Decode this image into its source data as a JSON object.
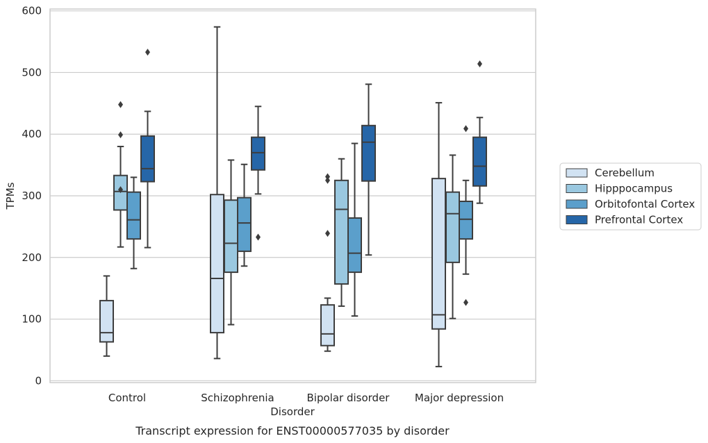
{
  "chart_data": {
    "type": "box",
    "title": "",
    "caption": "Transcript expression for ENST00000577035 by disorder",
    "xlabel": "Disorder",
    "ylabel": "TPMs",
    "ylim": [
      -3,
      603
    ],
    "yticks": [
      0,
      100,
      200,
      300,
      400,
      500,
      600
    ],
    "grid": "horizontal",
    "legend_placement": "right",
    "categories": [
      "Control",
      "Schizophrenia",
      "Bipolar disorder",
      "Major depression"
    ],
    "series": [
      {
        "name": "Cerebellum",
        "color": "#d1e2f2",
        "boxes": [
          {
            "whisker_low": 40,
            "q1": 63,
            "median": 78,
            "q3": 130,
            "whisker_high": 170,
            "outliers": []
          },
          {
            "whisker_low": 36,
            "q1": 78,
            "median": 166,
            "q3": 302,
            "whisker_high": 574,
            "outliers": []
          },
          {
            "whisker_low": 48,
            "q1": 57,
            "median": 76,
            "q3": 123,
            "whisker_high": 134,
            "outliers": [
              239,
              325,
              331
            ]
          },
          {
            "whisker_low": 23,
            "q1": 84,
            "median": 107,
            "q3": 328,
            "whisker_high": 451,
            "outliers": []
          }
        ]
      },
      {
        "name": "Hipppocampus",
        "color": "#9ac8e0",
        "boxes": [
          {
            "whisker_low": 217,
            "q1": 277,
            "median": 307,
            "q3": 333,
            "whisker_high": 380,
            "outliers": [
              310,
              399,
              448
            ]
          },
          {
            "whisker_low": 91,
            "q1": 176,
            "median": 223,
            "q3": 293,
            "whisker_high": 358,
            "outliers": []
          },
          {
            "whisker_low": 121,
            "q1": 157,
            "median": 278,
            "q3": 325,
            "whisker_high": 360,
            "outliers": []
          },
          {
            "whisker_low": 101,
            "q1": 192,
            "median": 271,
            "q3": 306,
            "whisker_high": 366,
            "outliers": []
          }
        ]
      },
      {
        "name": "Orbitofontal Cortex",
        "color": "#5b9fcb",
        "boxes": [
          {
            "whisker_low": 182,
            "q1": 230,
            "median": 261,
            "q3": 306,
            "whisker_high": 330,
            "outliers": []
          },
          {
            "whisker_low": 186,
            "q1": 210,
            "median": 256,
            "q3": 297,
            "whisker_high": 351,
            "outliers": []
          },
          {
            "whisker_low": 105,
            "q1": 176,
            "median": 207,
            "q3": 264,
            "whisker_high": 385,
            "outliers": []
          },
          {
            "whisker_low": 173,
            "q1": 230,
            "median": 262,
            "q3": 291,
            "whisker_high": 325,
            "outliers": [
              127,
              409
            ]
          }
        ]
      },
      {
        "name": "Prefrontal Cortex",
        "color": "#2666a8",
        "boxes": [
          {
            "whisker_low": 216,
            "q1": 323,
            "median": 344,
            "q3": 397,
            "whisker_high": 437,
            "outliers": [
              533
            ]
          },
          {
            "whisker_low": 303,
            "q1": 342,
            "median": 370,
            "q3": 395,
            "whisker_high": 445,
            "outliers": [
              233
            ]
          },
          {
            "whisker_low": 204,
            "q1": 324,
            "median": 387,
            "q3": 414,
            "whisker_high": 481,
            "outliers": []
          },
          {
            "whisker_low": 288,
            "q1": 316,
            "median": 348,
            "q3": 395,
            "whisker_high": 427,
            "outliers": [
              514
            ]
          }
        ]
      }
    ]
  }
}
